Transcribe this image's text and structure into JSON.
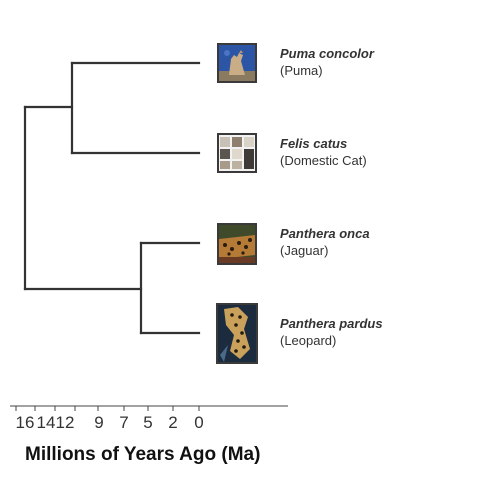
{
  "axis": {
    "title": "Millions of Years Ago (Ma)",
    "ticks": [
      {
        "label": "16",
        "value": 16
      },
      {
        "label": "14",
        "value": 14
      },
      {
        "label": "12",
        "value": 12
      },
      {
        "label": "9",
        "value": 9
      },
      {
        "label": "7",
        "value": 7
      },
      {
        "label": "5",
        "value": 5
      },
      {
        "label": "2",
        "value": 2
      },
      {
        "label": "0",
        "value": 0
      }
    ]
  },
  "taxa": [
    {
      "scientific": "Puma concolor",
      "common": "(Puma)",
      "image": "puma-photo-icon"
    },
    {
      "scientific": "Felis catus",
      "common": "(Domestic Cat)",
      "image": "domestic-cat-photo-icon"
    },
    {
      "scientific": "Panthera onca",
      "common": "(Jaguar)",
      "image": "jaguar-photo-icon"
    },
    {
      "scientific": "Panthera pardus",
      "common": "(Leopard)",
      "image": "leopard-photo-icon"
    }
  ],
  "colors": {
    "branch": "#333333",
    "text": "#333333"
  }
}
